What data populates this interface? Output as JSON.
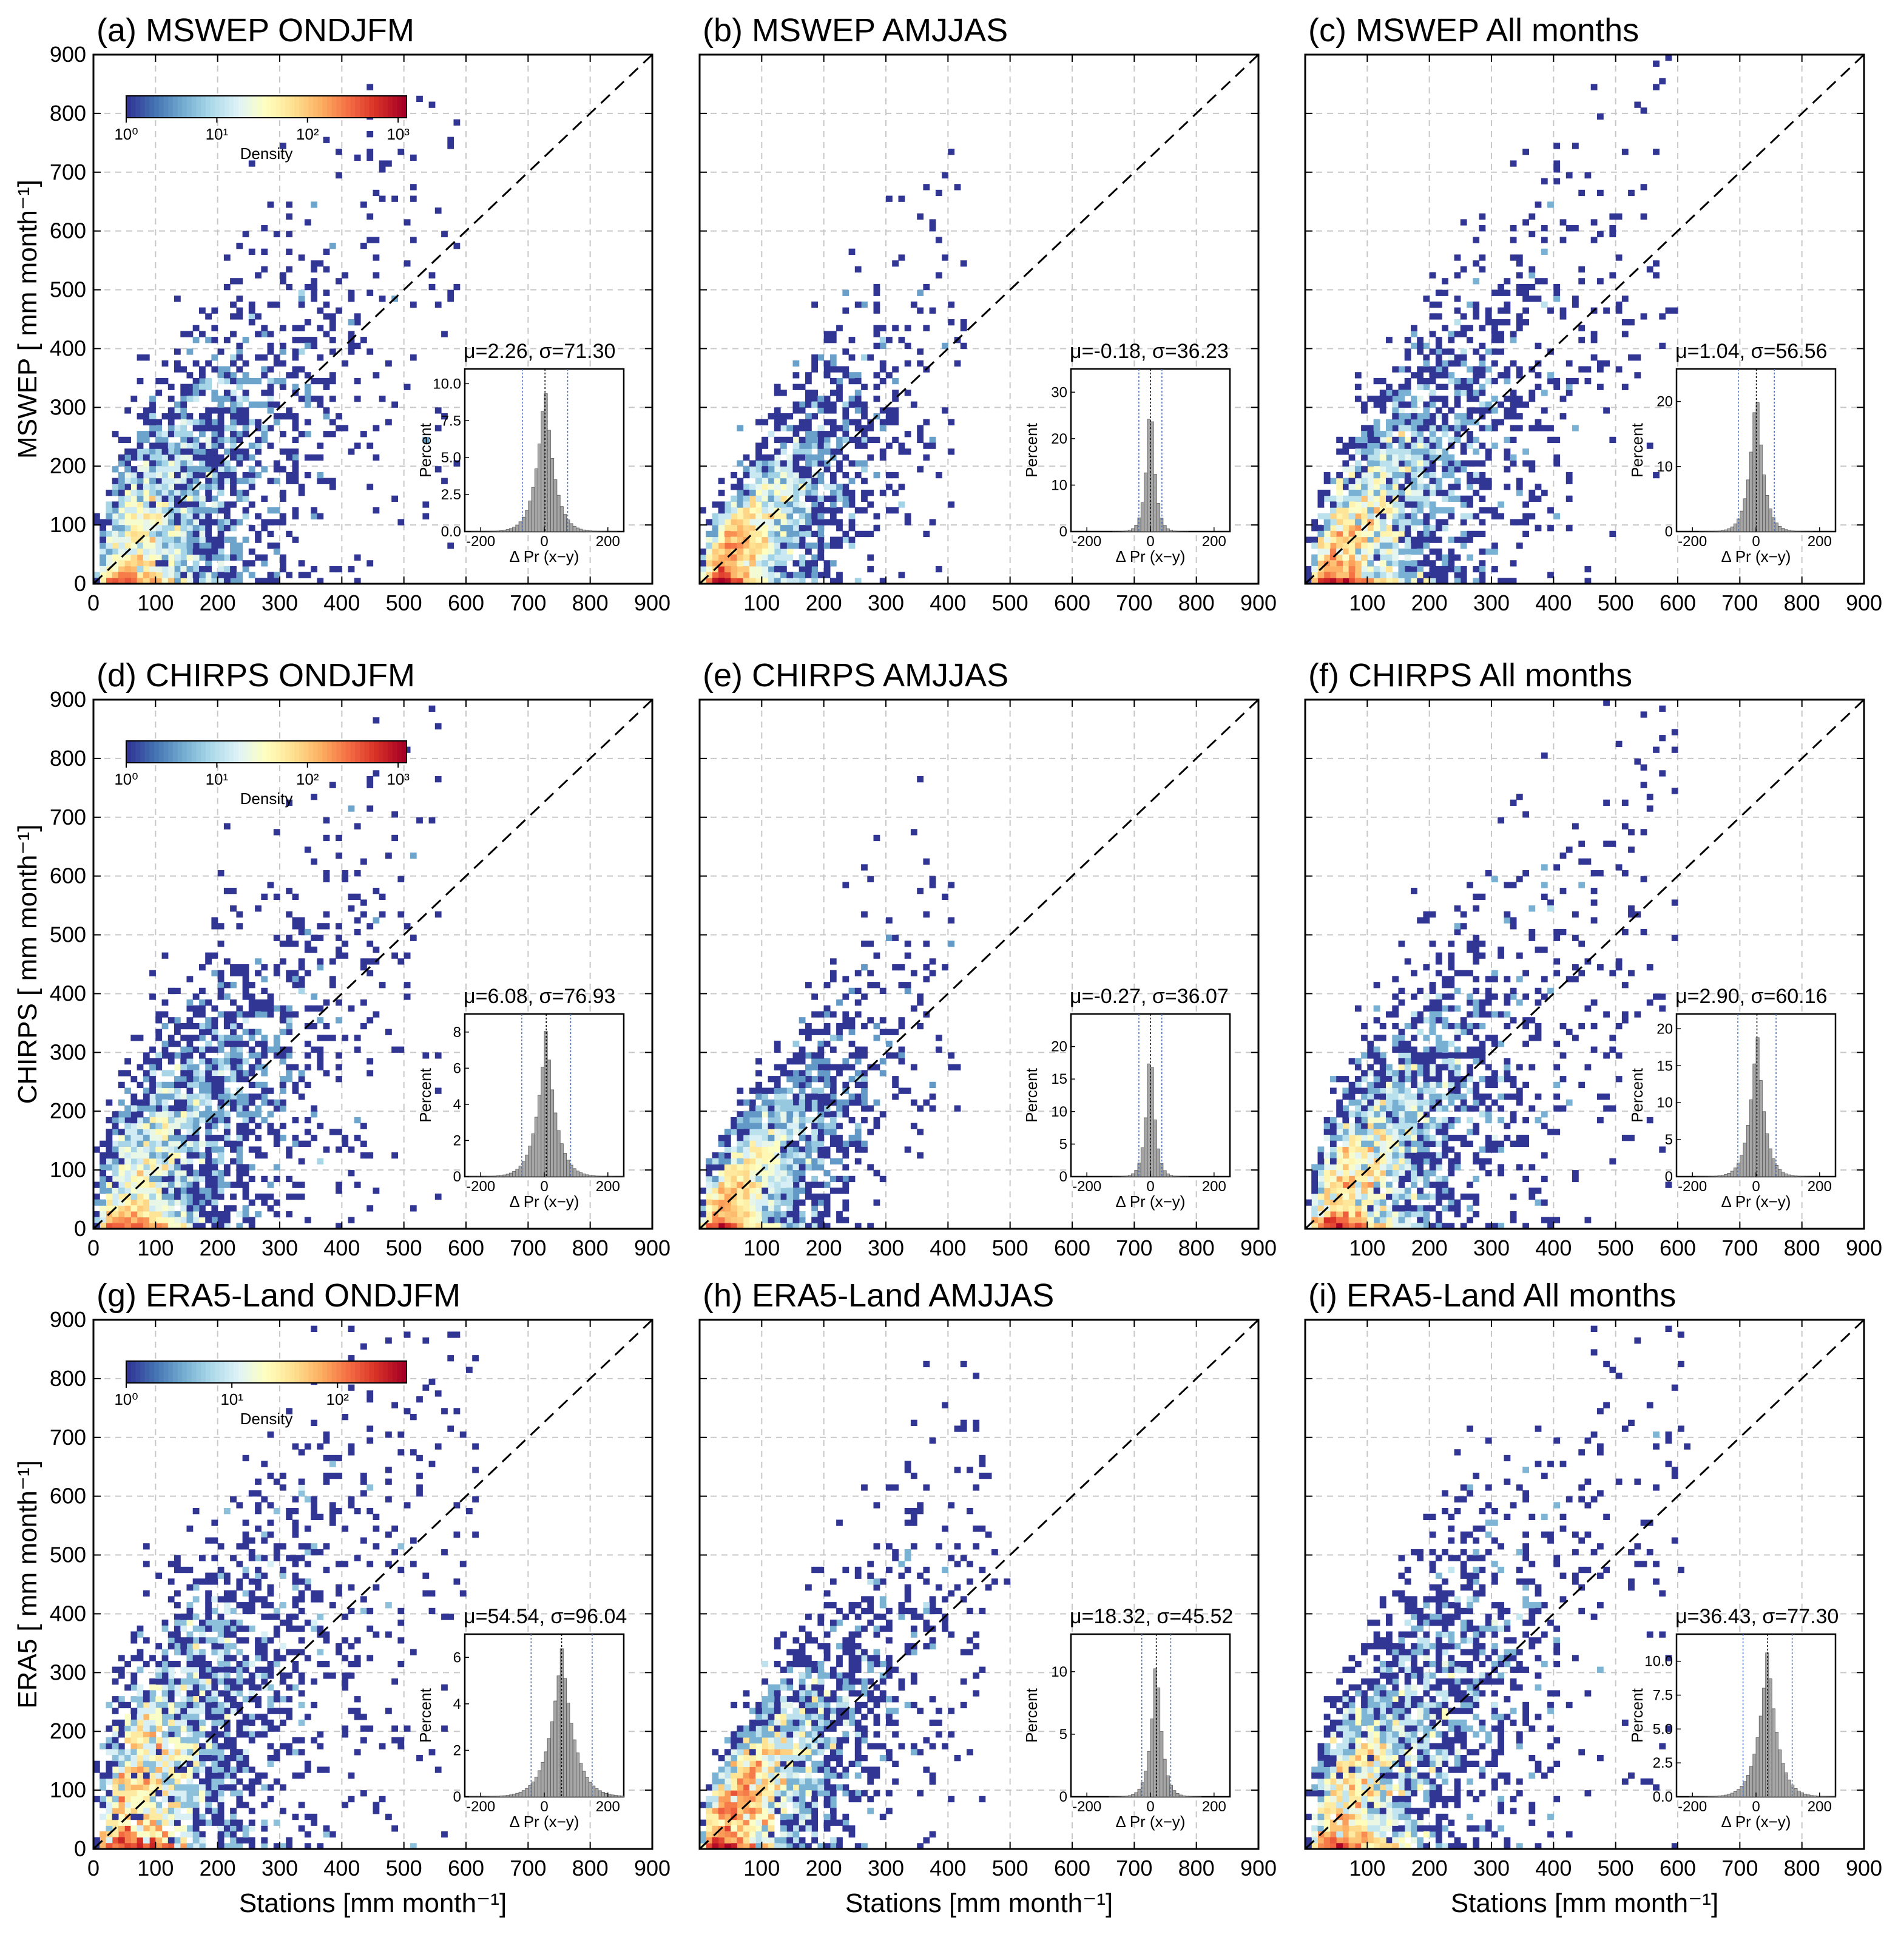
{
  "figure": {
    "x_axis_label": "Stations [mm month⁻¹]",
    "inset_xlabel": "Δ Pr (x−y)",
    "inset_ylabel": "Percent",
    "colorbar_label": "Density",
    "axis_ticks": [
      "0",
      "100",
      "200",
      "300",
      "400",
      "500",
      "600",
      "700",
      "800",
      "900"
    ],
    "inset_xticks": [
      "-200",
      "0",
      "200"
    ]
  },
  "chart_data": [
    {
      "id": "a",
      "type": "heatmap",
      "title": "(a) MSWEP ONDJFM",
      "ylabel": "MSWEP [ mm month⁻¹]",
      "xlim": [
        0,
        900
      ],
      "ylim": [
        0,
        900
      ],
      "stats": "μ=2.26, σ=71.30",
      "mu": 2.26,
      "sigma": 71.3,
      "spread": 75,
      "maxdensity": 0.85,
      "inset_yticks": [
        "0.0",
        "2.5",
        "5.0",
        "7.5",
        "10.0"
      ],
      "inset_ymax": 11,
      "colorbar_ticks": [
        "10⁰",
        "10¹",
        "10²",
        "10³"
      ],
      "cap": 590
    },
    {
      "id": "b",
      "type": "heatmap",
      "title": "(b) MSWEP AMJJAS",
      "ylabel": "",
      "xlim": [
        0,
        900
      ],
      "ylim": [
        0,
        900
      ],
      "stats": "μ=-0.18, σ=36.23",
      "mu": -0.18,
      "sigma": 36.23,
      "spread": 38,
      "maxdensity": 1.0,
      "inset_yticks": [
        "0",
        "10",
        "20",
        "30"
      ],
      "inset_ymax": 35,
      "cap": 430
    },
    {
      "id": "c",
      "type": "heatmap",
      "title": "(c) MSWEP All months",
      "ylabel": "",
      "xlim": [
        0,
        900
      ],
      "ylim": [
        0,
        900
      ],
      "stats": "μ=1.04, σ=56.56",
      "mu": 1.04,
      "sigma": 56.56,
      "spread": 60,
      "maxdensity": 1.0,
      "inset_yticks": [
        "0",
        "10",
        "20"
      ],
      "inset_ymax": 25,
      "cap": 600
    },
    {
      "id": "d",
      "type": "heatmap",
      "title": "(d) CHIRPS ONDJFM",
      "ylabel": "CHIRPS [ mm month⁻¹]",
      "xlim": [
        0,
        900
      ],
      "ylim": [
        0,
        900
      ],
      "stats": "μ=6.08, σ=76.93",
      "mu": 6.08,
      "sigma": 76.93,
      "spread": 80,
      "maxdensity": 0.85,
      "inset_yticks": [
        "0",
        "2",
        "4",
        "6",
        "8"
      ],
      "inset_ymax": 9,
      "colorbar_ticks": [
        "10⁰",
        "10¹",
        "10²",
        "10³"
      ],
      "cap": 560
    },
    {
      "id": "e",
      "type": "heatmap",
      "title": "(e) CHIRPS AMJJAS",
      "ylabel": "",
      "xlim": [
        0,
        900
      ],
      "ylim": [
        0,
        900
      ],
      "stats": "μ=-0.27, σ=36.07",
      "mu": -0.27,
      "sigma": 36.07,
      "spread": 38,
      "maxdensity": 1.0,
      "inset_yticks": [
        "0",
        "5",
        "10",
        "15",
        "20"
      ],
      "inset_ymax": 25,
      "cap": 420
    },
    {
      "id": "f",
      "type": "heatmap",
      "title": "(f) CHIRPS All months",
      "ylabel": "",
      "xlim": [
        0,
        900
      ],
      "ylim": [
        0,
        900
      ],
      "stats": "μ=2.90, σ=60.16",
      "mu": 2.9,
      "sigma": 60.16,
      "spread": 64,
      "maxdensity": 1.0,
      "inset_yticks": [
        "0",
        "5",
        "10",
        "15",
        "20"
      ],
      "inset_ymax": 22,
      "cap": 600
    },
    {
      "id": "g",
      "type": "heatmap",
      "title": "(g) ERA5-Land ONDJFM",
      "ylabel": "ERA5 [ mm month⁻¹]",
      "xlim": [
        0,
        900
      ],
      "ylim": [
        0,
        900
      ],
      "stats": "μ=54.54, σ=96.04",
      "mu": 54.54,
      "sigma": 96.04,
      "spread": 95,
      "maxdensity": 0.95,
      "inset_yticks": [
        "0",
        "2",
        "4",
        "6"
      ],
      "inset_ymax": 7,
      "colorbar_ticks": [
        "10⁰",
        "10¹",
        "10²"
      ],
      "cap": 620
    },
    {
      "id": "h",
      "type": "heatmap",
      "title": "(h) ERA5-Land AMJJAS",
      "ylabel": "",
      "xlim": [
        0,
        900
      ],
      "ylim": [
        0,
        900
      ],
      "stats": "μ=18.32, σ=45.52",
      "mu": 18.32,
      "sigma": 45.52,
      "spread": 45,
      "maxdensity": 1.0,
      "inset_yticks": [
        "0",
        "5",
        "10"
      ],
      "inset_ymax": 13,
      "cap": 500
    },
    {
      "id": "i",
      "type": "heatmap",
      "title": "(i) ERA5-Land All months",
      "ylabel": "",
      "xlim": [
        0,
        900
      ],
      "ylim": [
        0,
        900
      ],
      "stats": "μ=36.43, σ=77.30",
      "mu": 36.43,
      "sigma": 77.3,
      "spread": 80,
      "maxdensity": 1.0,
      "inset_yticks": [
        "0.0",
        "2.5",
        "5.0",
        "7.5",
        "10.0"
      ],
      "inset_ymax": 12,
      "cap": 620
    }
  ],
  "colors": {
    "cmap": [
      "#313695",
      "#4575b4",
      "#74add1",
      "#abd9e9",
      "#e0f3f8",
      "#ffffbf",
      "#fee090",
      "#fdae61",
      "#f46d43",
      "#d73027",
      "#a50026"
    ],
    "hist_fill": "#a6a6a6",
    "hist_edge": "#5a5a5a",
    "sigma_line": "#4a6fb5",
    "grid": "#c8c8c8"
  }
}
